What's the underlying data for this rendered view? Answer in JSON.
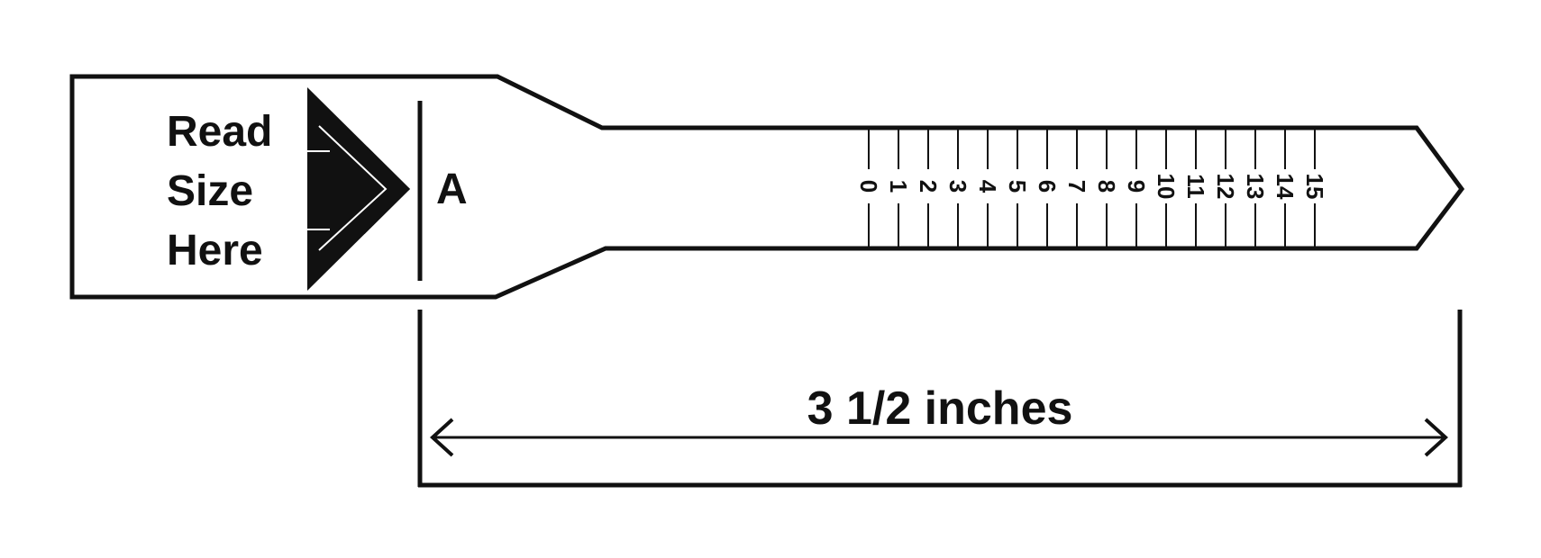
{
  "instruction": {
    "line1": "Read",
    "line2": "Size",
    "line3": "Here"
  },
  "marker_letter": "A",
  "scale_numbers": [
    "0",
    "1",
    "2",
    "3",
    "4",
    "5",
    "6",
    "7",
    "8",
    "9",
    "10",
    "11",
    "12",
    "13",
    "14",
    "15"
  ],
  "dimension_label": "3 1/2 inches",
  "colors": {
    "ink": "#111111",
    "background": "#ffffff"
  },
  "icons": [
    "pointer-arrow-icon",
    "double-arrow-icon"
  ]
}
